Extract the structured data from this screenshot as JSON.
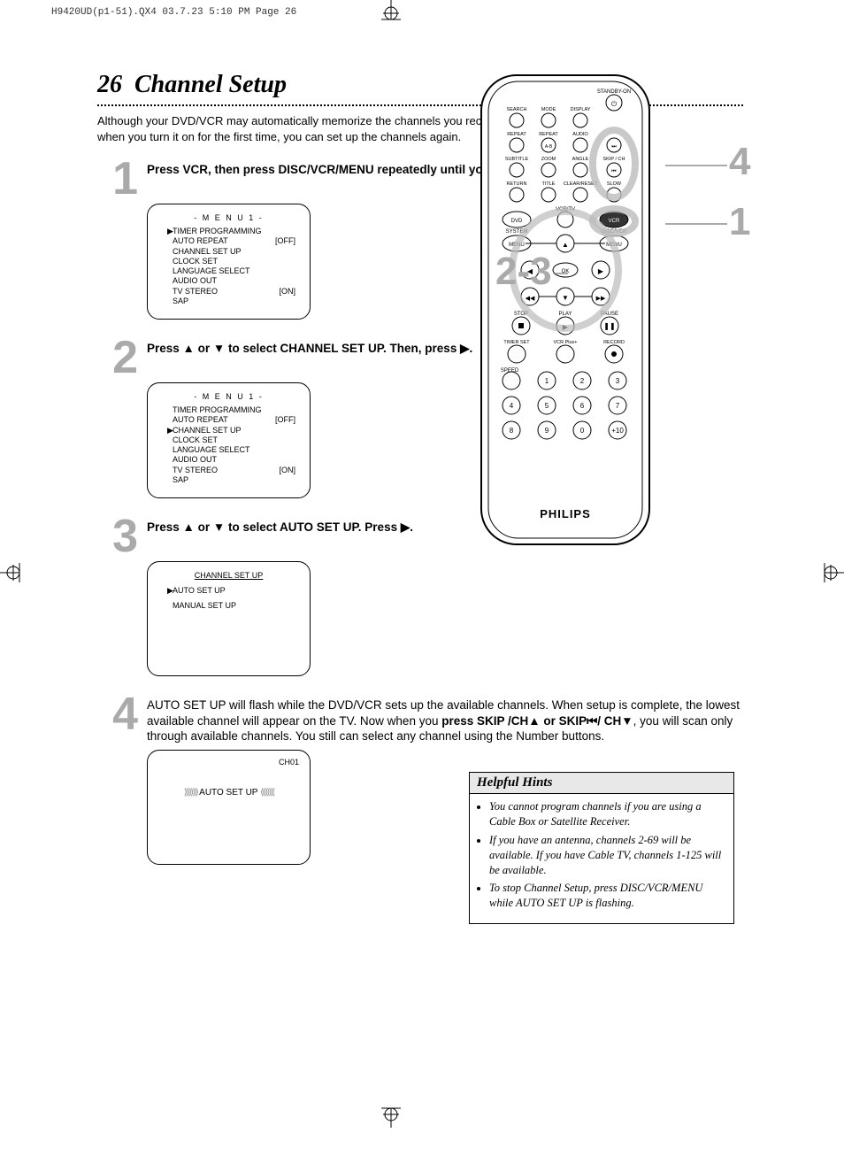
{
  "header": "H9420UD(p1-51).QX4  03.7.23  5:10 PM  Page 26",
  "pageNumber": "26",
  "title": "Channel Setup",
  "intro": "Although your DVD/VCR may automatically memorize the channels you receive when you turn it on for the first time, you can set up the channels again.",
  "steps": [
    {
      "num": "1",
      "text_html": "Press VCR, then press DISC/VCR/MENU repeatedly until you see MENU 1."
    },
    {
      "num": "2",
      "text_html": "Press ▲ or ▼ to select CHANNEL SET UP. Then, press ▶."
    },
    {
      "num": "3",
      "text_html": "Press ▲ or ▼ to select AUTO SET UP. Press ▶."
    },
    {
      "num": "4",
      "body_pre": "AUTO SET UP will flash while the DVD/VCR sets up the available channels. When setup is complete, the lowest available channel will appear on the TV.",
      "body_bold": "press SKIP   /CH▲ or SKIP⏮/ CH▼",
      "body_post": ", you will scan only through available channels. You still can select any channel using the Number buttons."
    }
  ],
  "menu1": {
    "title": "- M E N U  1 -",
    "cursor_row": 0,
    "lines": [
      {
        "label": "TIMER PROGRAMMING",
        "val": ""
      },
      {
        "label": "AUTO REPEAT",
        "val": "[OFF]"
      },
      {
        "label": "CHANNEL SET UP",
        "val": ""
      },
      {
        "label": "CLOCK SET",
        "val": ""
      },
      {
        "label": "LANGUAGE SELECT",
        "val": ""
      },
      {
        "label": "AUDIO OUT",
        "val": ""
      },
      {
        "label": "TV STEREO",
        "val": "[ON]"
      },
      {
        "label": "SAP",
        "val": ""
      }
    ]
  },
  "menu2_cursor_row": 2,
  "menu3": {
    "title": "CHANNEL SET UP",
    "cursor_row": 0,
    "lines": [
      {
        "label": "AUTO SET UP"
      },
      {
        "label": "MANUAL SET UP"
      }
    ]
  },
  "screen4": {
    "ch": "CH01",
    "label": "AUTO SET UP"
  },
  "callouts": {
    "left": "2-3",
    "r1": "4",
    "r2": "1"
  },
  "hints": {
    "title": "Helpful Hints",
    "items": [
      "You cannot program channels if you are using a Cable Box or Satellite Receiver.",
      "If you have an antenna, channels 2-69 will be available. If you have Cable TV, channels 1-125 will be available.",
      "To stop Channel Setup, press DISC/VCR/MENU while AUTO SET UP is flashing."
    ]
  },
  "remote": {
    "brand": "PHILIPS",
    "rows": [
      [
        "SEARCH",
        "MODE",
        "DISPLAY",
        ""
      ],
      [
        "REPEAT",
        "REPEAT",
        "AUDIO",
        ""
      ],
      [
        "SUBTITLE",
        "ZOOM",
        "ANGLE",
        "SKIP / CH"
      ],
      [
        "RETURN",
        "TITLE",
        "CLEAR/RESET",
        "SLOW"
      ]
    ],
    "standby": "STANDBY-ON",
    "ab": "A-B",
    "vcrtv": "VCR/TV",
    "dvd": "DVD",
    "vcr": "VCR",
    "system": "SYSTEM",
    "discvcr": "DISC/VCR",
    "menuL": "MENU",
    "menuR": "MENU",
    "ok": "OK",
    "stop": "STOP",
    "play": "PLAY",
    "pause": "PAUSE",
    "timerset": "TIMER SET",
    "vcrplus": "VCR Plus+",
    "record": "RECORD",
    "speed": "SPEED",
    "numbers": [
      "1",
      "2",
      "3",
      "4",
      "5",
      "6",
      "7",
      "8",
      "9",
      "0",
      "+10"
    ]
  },
  "colors": {
    "gray": "#aaaaaa",
    "hintbg": "#e8e8e8"
  }
}
